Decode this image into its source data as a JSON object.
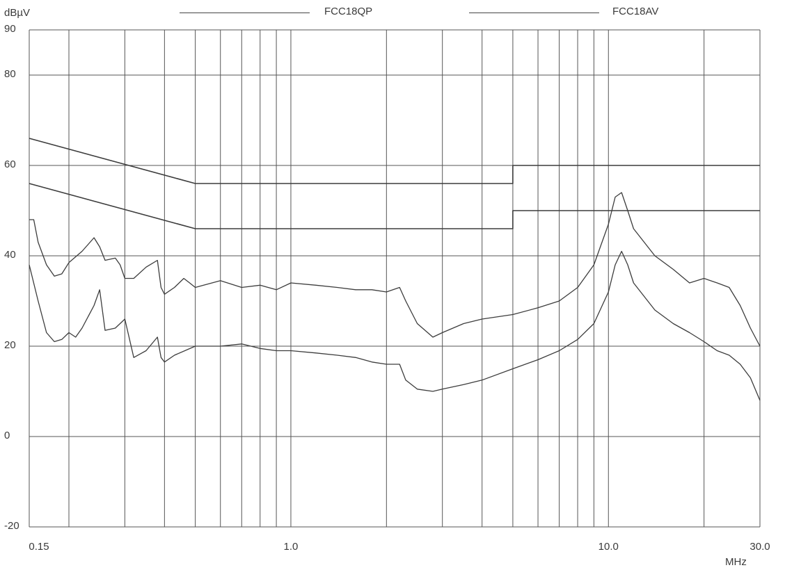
{
  "chart_data": {
    "type": "line",
    "ylabel": "dBµV",
    "xlabel": "MHz",
    "x_scale": "log",
    "xlim": [
      0.15,
      30.0
    ],
    "ylim": [
      -20,
      90
    ],
    "grid": true,
    "legend_position": "top",
    "y_ticks": [
      "90",
      "80",
      "60",
      "40",
      "20",
      "0",
      "-20"
    ],
    "y_tick_values": [
      90,
      80,
      60,
      40,
      20,
      0,
      -20
    ],
    "x_ticks": [
      "0.15",
      "1.0",
      "10.0",
      "30.0"
    ],
    "x_tick_values": [
      0.15,
      1.0,
      10.0,
      30.0
    ],
    "legend": [
      {
        "name": "FCC18QP"
      },
      {
        "name": "FCC18AV"
      }
    ],
    "limit_lines": [
      {
        "name": "FCC18QP",
        "points": [
          [
            0.15,
            66
          ],
          [
            0.5,
            56
          ],
          [
            5.0,
            56
          ],
          [
            5.0,
            60
          ],
          [
            30.0,
            60
          ]
        ]
      },
      {
        "name": "FCC18AV",
        "points": [
          [
            0.15,
            56
          ],
          [
            0.5,
            46
          ],
          [
            5.0,
            46
          ],
          [
            5.0,
            50
          ],
          [
            30.0,
            50
          ]
        ]
      }
    ],
    "series": [
      {
        "role": "quasi-peak trace",
        "points": [
          [
            0.15,
            48
          ],
          [
            0.155,
            48
          ],
          [
            0.16,
            43
          ],
          [
            0.17,
            38
          ],
          [
            0.18,
            35.5
          ],
          [
            0.19,
            36
          ],
          [
            0.2,
            38.5
          ],
          [
            0.22,
            41
          ],
          [
            0.24,
            44
          ],
          [
            0.25,
            42
          ],
          [
            0.26,
            39
          ],
          [
            0.28,
            39.5
          ],
          [
            0.29,
            38
          ],
          [
            0.3,
            35
          ],
          [
            0.32,
            35
          ],
          [
            0.35,
            37.5
          ],
          [
            0.38,
            39
          ],
          [
            0.39,
            33
          ],
          [
            0.4,
            31.5
          ],
          [
            0.43,
            33
          ],
          [
            0.46,
            35
          ],
          [
            0.48,
            34
          ],
          [
            0.5,
            33
          ],
          [
            0.6,
            34.5
          ],
          [
            0.7,
            33
          ],
          [
            0.8,
            33.5
          ],
          [
            0.9,
            32.5
          ],
          [
            1.0,
            34
          ],
          [
            1.2,
            33.5
          ],
          [
            1.4,
            33
          ],
          [
            1.6,
            32.5
          ],
          [
            1.8,
            32.5
          ],
          [
            2.0,
            32
          ],
          [
            2.2,
            33
          ],
          [
            2.3,
            30
          ],
          [
            2.5,
            25
          ],
          [
            2.8,
            22
          ],
          [
            3.0,
            23
          ],
          [
            3.5,
            25
          ],
          [
            4.0,
            26
          ],
          [
            5.0,
            27
          ],
          [
            6.0,
            28.5
          ],
          [
            7.0,
            30
          ],
          [
            8.0,
            33
          ],
          [
            9.0,
            38
          ],
          [
            10.0,
            47
          ],
          [
            10.5,
            53
          ],
          [
            11.0,
            54
          ],
          [
            11.5,
            50
          ],
          [
            12.0,
            46
          ],
          [
            14.0,
            40
          ],
          [
            16.0,
            37
          ],
          [
            18.0,
            34
          ],
          [
            20.0,
            35
          ],
          [
            22.0,
            34
          ],
          [
            24.0,
            33
          ],
          [
            26.0,
            29
          ],
          [
            28.0,
            24
          ],
          [
            30.0,
            20
          ]
        ]
      },
      {
        "role": "average trace",
        "points": [
          [
            0.15,
            38
          ],
          [
            0.16,
            30
          ],
          [
            0.17,
            23
          ],
          [
            0.18,
            21
          ],
          [
            0.19,
            21.5
          ],
          [
            0.2,
            23
          ],
          [
            0.21,
            22
          ],
          [
            0.22,
            24
          ],
          [
            0.24,
            29
          ],
          [
            0.25,
            32.5
          ],
          [
            0.26,
            23.5
          ],
          [
            0.28,
            24
          ],
          [
            0.3,
            26
          ],
          [
            0.32,
            17.5
          ],
          [
            0.35,
            19
          ],
          [
            0.38,
            22
          ],
          [
            0.39,
            17.5
          ],
          [
            0.4,
            16.5
          ],
          [
            0.43,
            18
          ],
          [
            0.5,
            20
          ],
          [
            0.6,
            20
          ],
          [
            0.7,
            20.5
          ],
          [
            0.8,
            19.5
          ],
          [
            0.9,
            19
          ],
          [
            1.0,
            19
          ],
          [
            1.2,
            18.5
          ],
          [
            1.4,
            18
          ],
          [
            1.6,
            17.5
          ],
          [
            1.8,
            16.5
          ],
          [
            2.0,
            16
          ],
          [
            2.2,
            16
          ],
          [
            2.3,
            12.5
          ],
          [
            2.5,
            10.5
          ],
          [
            2.8,
            10
          ],
          [
            3.0,
            10.5
          ],
          [
            3.5,
            11.5
          ],
          [
            4.0,
            12.5
          ],
          [
            5.0,
            15
          ],
          [
            6.0,
            17
          ],
          [
            7.0,
            19
          ],
          [
            8.0,
            21.5
          ],
          [
            9.0,
            25
          ],
          [
            10.0,
            32
          ],
          [
            10.5,
            38
          ],
          [
            11.0,
            41
          ],
          [
            11.5,
            38
          ],
          [
            12.0,
            34
          ],
          [
            14.0,
            28
          ],
          [
            16.0,
            25
          ],
          [
            18.0,
            23
          ],
          [
            20.0,
            21
          ],
          [
            22.0,
            19
          ],
          [
            24.0,
            18
          ],
          [
            26.0,
            16
          ],
          [
            28.0,
            13
          ],
          [
            30.0,
            8
          ]
        ]
      }
    ]
  }
}
